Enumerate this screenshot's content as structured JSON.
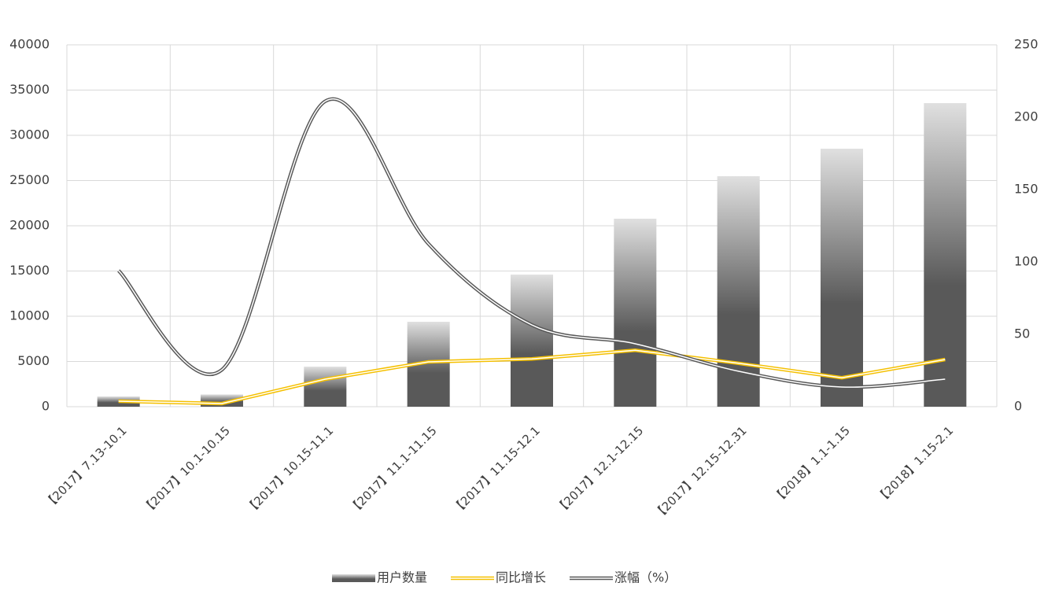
{
  "chart_data": {
    "type": "bar",
    "categories": [
      "【2017】7.13-10.1",
      "【2017】10.1-10.15",
      "【2017】10.15-11.1",
      "【2017】11.1-11.15",
      "【2017】11.15-12.1",
      "【2017】12.1-12.15",
      "【2017】12.15-12.31",
      "【2018】1.1-1.15",
      "【2018】1.15-2.1"
    ],
    "series": [
      {
        "name": "用户数量",
        "type": "bar",
        "color": "#595959",
        "values": [
          1130,
          1350,
          4430,
          9390,
          14600,
          20780,
          25480,
          28520,
          33560
        ]
      },
      {
        "name": "同比增长",
        "type": "line",
        "axis": "y2",
        "color": "#f5c000",
        "smooth": false,
        "values": [
          3.8,
          2.2,
          19,
          31,
          33,
          39,
          30,
          20,
          32.6
        ]
      },
      {
        "name": "涨幅（%）",
        "type": "line",
        "axis": "y2",
        "color": "#595959",
        "smooth": true,
        "values": [
          94,
          25.5,
          211,
          112.5,
          56.5,
          43.5,
          24.5,
          13.6,
          19
        ]
      }
    ],
    "ylim": [
      0,
      40000
    ],
    "yticks": [
      0,
      5000,
      10000,
      15000,
      20000,
      25000,
      30000,
      35000,
      40000
    ],
    "y2lim": [
      0,
      250
    ],
    "y2ticks": [
      0,
      50,
      100,
      150,
      200,
      250
    ],
    "grid": true
  }
}
